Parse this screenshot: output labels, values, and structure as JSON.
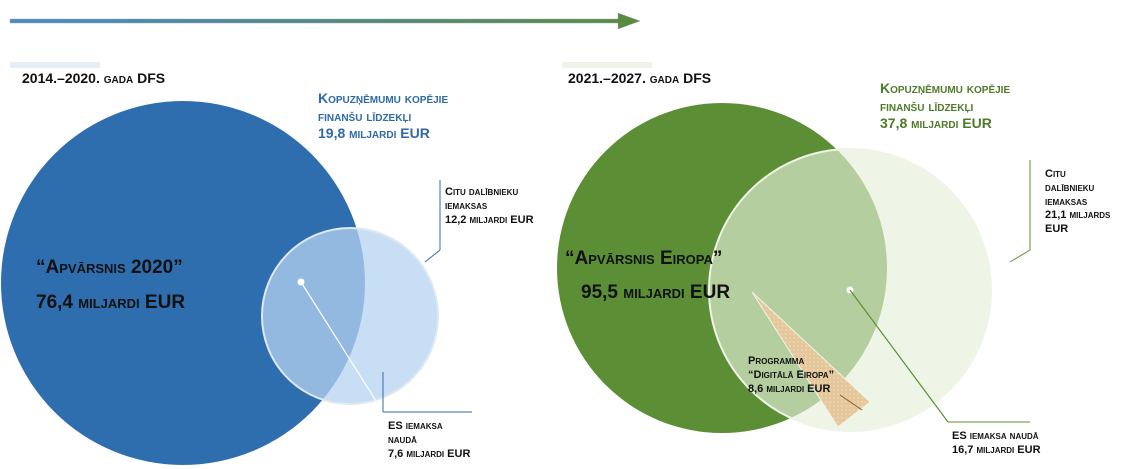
{
  "left": {
    "title": "2014.–2020. gada DFS",
    "partnership": {
      "lines": [
        "Kopuzņēmumu kopējie",
        "finanšu līdzekļi"
      ],
      "amount": "19,8 miljardi EUR"
    },
    "other": {
      "lines": [
        "Citu dalībnieku",
        "iemaksas"
      ],
      "amount": "12,2 miljardi EUR"
    },
    "programme": {
      "name": "“Apvārsnis 2020”",
      "amount": "76,4 miljardi EUR"
    },
    "eu": {
      "lines": [
        "ES iemaksa",
        "naudā"
      ],
      "amount": "7,6 miljardi EUR"
    }
  },
  "right": {
    "title": "2021.–2027. gada DFS",
    "partnership": {
      "lines": [
        "Kopuzņēmumu kopējie",
        "finanšu līdzekļi"
      ],
      "amount": "37,8 miljardi EUR"
    },
    "other": {
      "lines": [
        "Citu",
        "dalībnieku",
        "iemaksas"
      ],
      "amount": "21,1 miljards",
      "unit": "EUR"
    },
    "programme": {
      "name": "“Apvārsnis Eiropa”",
      "amount": "95,5 miljardi EUR"
    },
    "digital": {
      "lines": [
        "Programma",
        "“Digitālā Eiropa”"
      ],
      "amount": "8,6 miljardi EUR"
    },
    "eu": {
      "lines": [
        "ES iemaksa naudā"
      ],
      "amount": "16,7 miljardi EUR"
    }
  }
}
